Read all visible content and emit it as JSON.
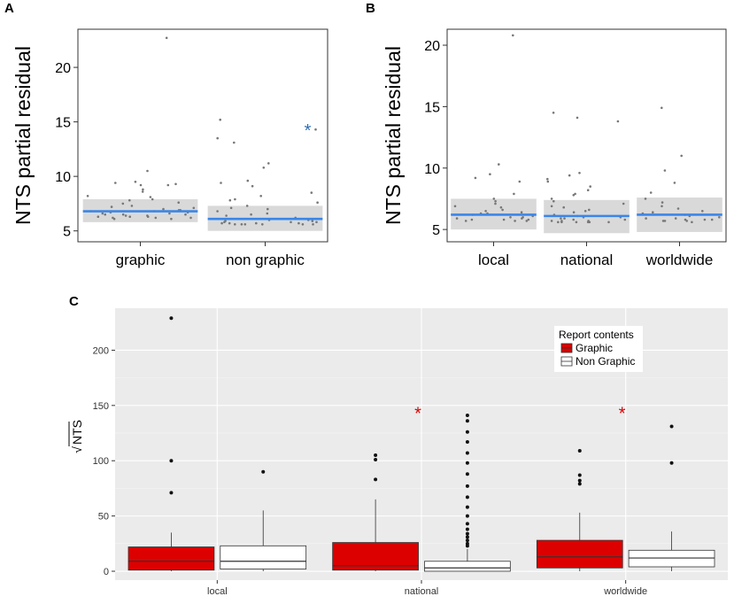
{
  "chart_data": [
    {
      "panel": "A",
      "type": "scatter",
      "title": "",
      "xlabel": "",
      "ylabel": "NTS partial residual",
      "categories": [
        "graphic",
        "non graphic"
      ],
      "ylim": [
        4,
        23.5
      ],
      "yticks": [
        5,
        10,
        15,
        20
      ],
      "fit": [
        {
          "category": "graphic",
          "mean": 6.8,
          "ci": [
            5.8,
            7.9
          ]
        },
        {
          "category": "non graphic",
          "mean": 6.1,
          "ci": [
            5.0,
            7.3
          ]
        }
      ],
      "points": [
        {
          "category": "graphic",
          "values": [
            22.7,
            10.5,
            9.5,
            9.4,
            9.3,
            9.2,
            9.2,
            8.8,
            8.6,
            8.2,
            8.1,
            7.9,
            7.8,
            7.6,
            7.5,
            7.3,
            7.2,
            7.1,
            7.0,
            6.9,
            6.9,
            6.8,
            6.8,
            6.7,
            6.7,
            6.6,
            6.6,
            6.5,
            6.5,
            6.5,
            6.4,
            6.4,
            6.3,
            6.3,
            6.3,
            6.2,
            6.2,
            6.2,
            6.1,
            6.1
          ]
        },
        {
          "category": "non graphic",
          "values": [
            15.2,
            14.3,
            13.5,
            13.1,
            11.2,
            10.8,
            9.6,
            9.4,
            9.1,
            8.5,
            8.2,
            7.9,
            7.8,
            7.6,
            7.3,
            7.1,
            7.0,
            6.8,
            6.6,
            6.5,
            6.4,
            6.2,
            6.1,
            6.0,
            6.0,
            5.9,
            5.9,
            5.8,
            5.8,
            5.8,
            5.7,
            5.7,
            5.7,
            5.7,
            5.6,
            5.6,
            5.6,
            5.6,
            5.6,
            5.6
          ]
        }
      ],
      "annotations": [
        {
          "category": "non graphic",
          "y": 14.5,
          "text": "*"
        }
      ]
    },
    {
      "panel": "B",
      "type": "scatter",
      "title": "",
      "xlabel": "",
      "ylabel": "NTS partial residual",
      "categories": [
        "local",
        "national",
        "worldwide"
      ],
      "ylim": [
        4,
        21.3
      ],
      "yticks": [
        5,
        10,
        15,
        20
      ],
      "fit": [
        {
          "category": "local",
          "mean": 6.2,
          "ci": [
            5.0,
            7.5
          ]
        },
        {
          "category": "national",
          "mean": 6.1,
          "ci": [
            4.7,
            7.4
          ]
        },
        {
          "category": "worldwide",
          "mean": 6.2,
          "ci": [
            4.8,
            7.6
          ]
        }
      ],
      "points": [
        {
          "category": "local",
          "values": [
            20.8,
            10.3,
            9.5,
            9.2,
            8.9,
            7.9,
            7.5,
            7.3,
            7.1,
            6.9,
            6.8,
            6.6,
            6.5,
            6.4,
            6.3,
            6.3,
            6.2,
            6.1,
            6.0,
            6.0,
            5.9,
            5.9,
            5.8,
            5.8,
            5.8,
            5.7,
            5.7,
            5.7
          ]
        },
        {
          "category": "national",
          "values": [
            14.5,
            14.1,
            13.8,
            9.6,
            9.4,
            9.1,
            8.9,
            8.5,
            8.2,
            7.9,
            7.8,
            7.5,
            7.3,
            7.1,
            6.9,
            6.8,
            6.6,
            6.5,
            6.4,
            6.2,
            6.1,
            6.0,
            6.0,
            5.9,
            5.9,
            5.8,
            5.8,
            5.7,
            5.7,
            5.7,
            5.6,
            5.6,
            5.6,
            5.6,
            5.6,
            5.6
          ]
        },
        {
          "category": "worldwide",
          "values": [
            14.9,
            11.0,
            9.8,
            8.8,
            8.0,
            7.5,
            7.2,
            6.9,
            6.7,
            6.5,
            6.4,
            6.3,
            6.2,
            6.1,
            6.0,
            5.9,
            5.9,
            5.8,
            5.8,
            5.8,
            5.7,
            5.7,
            5.7,
            5.6
          ]
        }
      ]
    },
    {
      "panel": "C",
      "type": "box",
      "title": "",
      "xlabel": "",
      "ylabel": "NTS",
      "ylabel_prefix": "√",
      "categories": [
        "local",
        "national",
        "worldwide"
      ],
      "ylim": [
        -8,
        238
      ],
      "yticks": [
        0,
        50,
        100,
        150,
        200
      ],
      "legend": {
        "title": "Report contents",
        "position": "top-right"
      },
      "series": [
        {
          "name": "Graphic",
          "color": "#dd0000",
          "boxes": [
            {
              "category": "local",
              "q1": 1,
              "median": 9,
              "q3": 22,
              "whisker_low": 0,
              "whisker_high": 35,
              "outliers": [
                229,
                100,
                71
              ]
            },
            {
              "category": "national",
              "q1": 1,
              "median": 5,
              "q3": 26,
              "whisker_low": 0,
              "whisker_high": 65,
              "outliers": [
                105,
                101,
                83
              ]
            },
            {
              "category": "worldwide",
              "q1": 3,
              "median": 13,
              "q3": 28,
              "whisker_low": 0,
              "whisker_high": 53,
              "outliers": [
                109,
                87,
                82,
                79
              ]
            }
          ]
        },
        {
          "name": "Non Graphic",
          "color": "#ffffff",
          "boxes": [
            {
              "category": "local",
              "q1": 2,
              "median": 9,
              "q3": 23,
              "whisker_low": 0,
              "whisker_high": 55,
              "outliers": [
                90
              ]
            },
            {
              "category": "national",
              "q1": 0,
              "median": 3,
              "q3": 9,
              "whisker_low": 0,
              "whisker_high": 20,
              "outliers": [
                141,
                136,
                126,
                117,
                107,
                98,
                88,
                77,
                67,
                58,
                50,
                43,
                38,
                34,
                31,
                28,
                25,
                23
              ]
            },
            {
              "category": "worldwide",
              "q1": 4,
              "median": 12,
              "q3": 19,
              "whisker_low": 0,
              "whisker_high": 36,
              "outliers": [
                131,
                98
              ]
            }
          ]
        }
      ],
      "annotations": [
        {
          "category": "national",
          "y": 147,
          "text": "*"
        },
        {
          "category": "worldwide",
          "y": 147,
          "text": "*"
        }
      ]
    }
  ],
  "colors": {
    "fit_line": "#3a86e8",
    "ci_band": "#d9d9d9",
    "point": "#777777",
    "star_a": "#2d6db5",
    "star_c": "#dd0000",
    "panel_bg": "#ebebeb",
    "gridline": "#ffffff"
  }
}
